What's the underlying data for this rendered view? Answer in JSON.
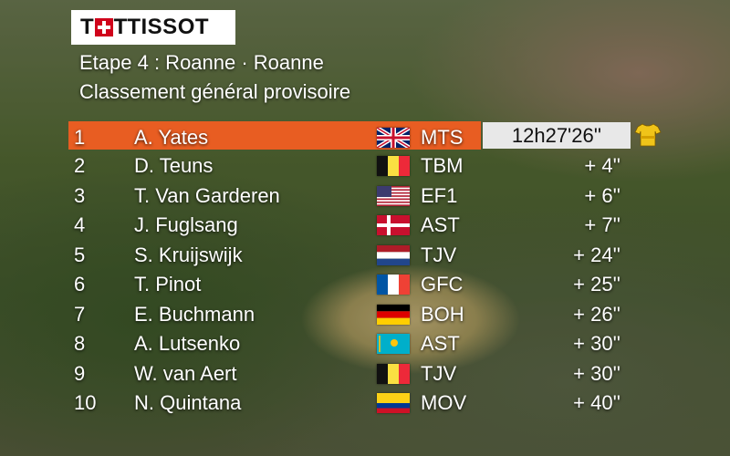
{
  "logo": {
    "brand": "TISSOT"
  },
  "stage_title": "Etape 4 : Roanne · Roanne",
  "classification_title": "Classement général provisoire",
  "leader": {
    "rank": "1",
    "name": "A. Yates",
    "flag": "gb",
    "team": "MTS",
    "time": "12h27'26''"
  },
  "rows": [
    {
      "rank": "2",
      "name": "D. Teuns",
      "flag": "be",
      "team": "TBM",
      "gap": "+  4''"
    },
    {
      "rank": "3",
      "name": "T. Van Garderen",
      "flag": "us",
      "team": "EF1",
      "gap": "+  6''"
    },
    {
      "rank": "4",
      "name": "J. Fuglsang",
      "flag": "dk",
      "team": "AST",
      "gap": "+  7''"
    },
    {
      "rank": "5",
      "name": "S. Kruijswijk",
      "flag": "nl",
      "team": "TJV",
      "gap": "+ 24''"
    },
    {
      "rank": "6",
      "name": "T. Pinot",
      "flag": "fr",
      "team": "GFC",
      "gap": "+ 25''"
    },
    {
      "rank": "7",
      "name": "E. Buchmann",
      "flag": "de",
      "team": "BOH",
      "gap": "+ 26''"
    },
    {
      "rank": "8",
      "name": "A. Lutsenko",
      "flag": "kz",
      "team": "AST",
      "gap": "+ 30''"
    },
    {
      "rank": "9",
      "name": "W. van Aert",
      "flag": "be",
      "team": "TJV",
      "gap": "+ 30''"
    },
    {
      "rank": "10",
      "name": "N. Quintana",
      "flag": "co",
      "team": "MOV",
      "gap": "+ 40''"
    }
  ],
  "colors": {
    "leader_band": "#e85d22",
    "time_box": "#e8e8e8",
    "jersey": "#f0c419"
  },
  "icons": {
    "jersey": "yellow-jersey-icon"
  }
}
